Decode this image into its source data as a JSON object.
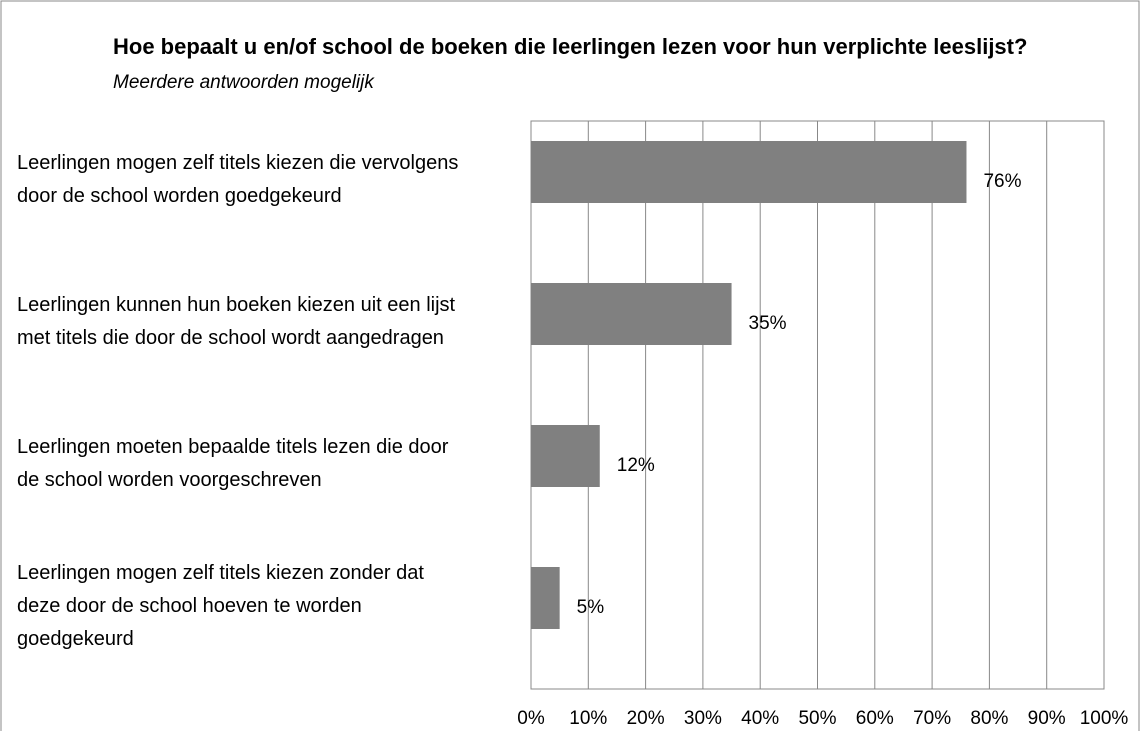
{
  "chart_data": {
    "type": "hbar",
    "title": "Hoe bepaalt u en/of school de boeken die leerlingen lezen voor hun verplichte leeslijst?",
    "subtitle": "Meerdere antwoorden mogelijk",
    "categories": [
      "Leerlingen mogen zelf titels kiezen die vervolgens door de school worden goedgekeurd",
      "Leerlingen kunnen hun boeken kiezen uit een lijst met titels die door de school wordt aangedragen",
      "Leerlingen moeten bepaalde titels lezen die door de school worden voorgeschreven",
      "Leerlingen mogen zelf titels kiezen zonder dat deze door de school hoeven te worden goedgekeurd"
    ],
    "values": [
      76,
      35,
      12,
      5
    ],
    "value_labels": [
      "76%",
      "35%",
      "12%",
      "5%"
    ],
    "color": "#808080",
    "xlim": [
      0,
      100
    ],
    "xticks": [
      {
        "value": 0,
        "label": "0%"
      },
      {
        "value": 10,
        "label": "10%"
      },
      {
        "value": 20,
        "label": "20%"
      },
      {
        "value": 30,
        "label": "30%"
      },
      {
        "value": 40,
        "label": "40%"
      },
      {
        "value": 50,
        "label": "50%"
      },
      {
        "value": 60,
        "label": "60%"
      },
      {
        "value": 70,
        "label": "70%"
      },
      {
        "value": 80,
        "label": "80%"
      },
      {
        "value": 90,
        "label": "90%"
      },
      {
        "value": 100,
        "label": "100%"
      }
    ],
    "grid": true
  }
}
